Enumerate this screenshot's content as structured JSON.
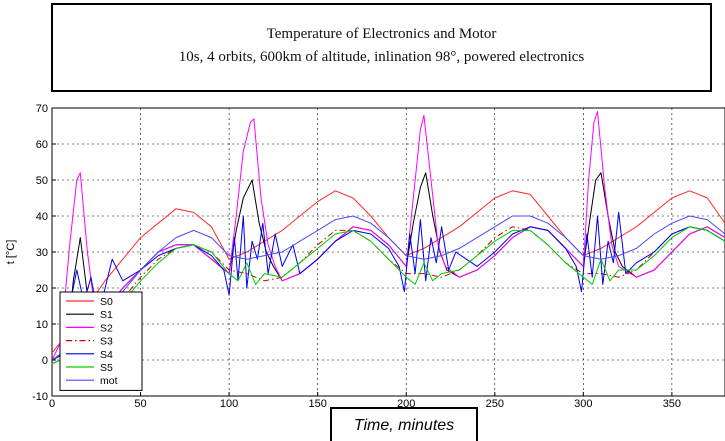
{
  "chart_data": {
    "type": "line",
    "title": "Temperature of Electronics and Motor",
    "subtitle": "10s, 4 orbits, 600km of altitude, inlination 98°, powered electronics",
    "xlabel": "Time, minutes",
    "ylabel": "t [°C]",
    "xlim": [
      0,
      380
    ],
    "ylim": [
      -10,
      70
    ],
    "xticks": [
      0,
      50,
      100,
      150,
      200,
      250,
      300,
      350
    ],
    "yticks": [
      -10,
      0,
      10,
      20,
      30,
      40,
      50,
      60,
      70
    ],
    "grid": true,
    "legend_position": "bottom-left",
    "series": [
      {
        "name": "S0",
        "color": "#ff2a2a",
        "dash": "solid",
        "x": [
          0,
          10,
          20,
          30,
          40,
          50,
          60,
          70,
          80,
          90,
          100,
          110,
          120,
          130,
          140,
          150,
          160,
          170,
          180,
          190,
          200,
          210,
          220,
          230,
          240,
          250,
          260,
          270,
          280,
          290,
          300,
          310,
          320,
          330,
          340,
          350,
          360,
          370,
          380
        ],
        "y": [
          2,
          8,
          15,
          22,
          28,
          34,
          38,
          42,
          41,
          37,
          28,
          30,
          33,
          36,
          40,
          44,
          47,
          45,
          40,
          34,
          29,
          31,
          34,
          37,
          41,
          45,
          47,
          46,
          40,
          34,
          29,
          31,
          34,
          37,
          41,
          45,
          47,
          45,
          38
        ]
      },
      {
        "name": "S1",
        "color": "#000000",
        "dash": "solid",
        "x": [
          0,
          8,
          12,
          16,
          20,
          25,
          30,
          40,
          50,
          60,
          70,
          80,
          90,
          100,
          104,
          108,
          113,
          117,
          121,
          125,
          130,
          140,
          150,
          160,
          170,
          180,
          190,
          200,
          204,
          208,
          211,
          215,
          219,
          223,
          230,
          240,
          250,
          260,
          270,
          280,
          290,
          300,
          304,
          307,
          310,
          314,
          318,
          322,
          330,
          340,
          350,
          360,
          370,
          380
        ],
        "y": [
          0,
          2,
          22,
          34,
          18,
          12,
          14,
          20,
          25,
          30,
          32,
          32,
          28,
          24,
          36,
          45,
          50,
          38,
          30,
          26,
          22,
          24,
          28,
          33,
          37,
          36,
          32,
          26,
          38,
          48,
          52,
          40,
          30,
          25,
          23,
          25,
          29,
          34,
          37,
          36,
          31,
          26,
          40,
          50,
          52,
          40,
          30,
          26,
          23,
          25,
          30,
          35,
          37,
          34
        ]
      },
      {
        "name": "S2",
        "color": "#ff00ff",
        "dash": "solid",
        "x": [
          0,
          5,
          10,
          14,
          16,
          20,
          24,
          30,
          40,
          50,
          60,
          70,
          80,
          90,
          100,
          104,
          108,
          112,
          114,
          118,
          122,
          126,
          130,
          140,
          150,
          160,
          170,
          180,
          190,
          200,
          204,
          208,
          210,
          214,
          218,
          222,
          230,
          240,
          250,
          260,
          270,
          280,
          290,
          300,
          303,
          306,
          308,
          312,
          316,
          320,
          330,
          340,
          350,
          360,
          370,
          380
        ],
        "y": [
          0,
          5,
          32,
          50,
          52,
          30,
          15,
          14,
          20,
          25,
          30,
          32,
          32,
          28,
          24,
          40,
          58,
          66,
          67,
          45,
          32,
          26,
          22,
          24,
          28,
          33,
          37,
          36,
          32,
          26,
          45,
          64,
          68,
          50,
          32,
          26,
          23,
          25,
          29,
          34,
          37,
          36,
          31,
          26,
          50,
          66,
          69,
          48,
          32,
          26,
          23,
          25,
          30,
          35,
          37,
          34
        ]
      },
      {
        "name": "S3",
        "color": "#cc0000",
        "dash": "dashdot",
        "x": [
          0,
          10,
          20,
          30,
          40,
          50,
          60,
          70,
          80,
          90,
          100,
          110,
          120,
          130,
          140,
          150,
          160,
          170,
          180,
          190,
          200,
          210,
          220,
          230,
          240,
          250,
          260,
          270,
          280,
          290,
          300,
          310,
          320,
          330,
          340,
          350,
          360,
          370,
          380
        ],
        "y": [
          -1,
          1,
          5,
          11,
          17,
          23,
          28,
          31,
          32,
          30,
          25,
          24,
          22,
          23,
          27,
          32,
          36,
          36,
          33,
          28,
          24,
          24,
          23,
          25,
          29,
          34,
          37,
          36,
          32,
          27,
          24,
          24,
          23,
          25,
          30,
          35,
          37,
          36,
          33
        ]
      },
      {
        "name": "S4",
        "color": "#0000ee",
        "dash": "solid",
        "x": [
          0,
          6,
          10,
          14,
          18,
          22,
          26,
          30,
          34,
          40,
          50,
          60,
          70,
          80,
          90,
          97,
          100,
          103,
          105,
          108,
          110,
          113,
          116,
          119,
          122,
          126,
          130,
          136,
          140,
          150,
          160,
          170,
          180,
          190,
          196,
          199,
          202,
          205,
          208,
          211,
          214,
          217,
          220,
          224,
          228,
          240,
          250,
          260,
          270,
          280,
          290,
          296,
          299,
          302,
          305,
          308,
          311,
          314,
          317,
          320,
          324,
          330,
          340,
          350,
          360,
          370,
          380
        ],
        "y": [
          0,
          2,
          15,
          25,
          16,
          23,
          12,
          20,
          28,
          22,
          25,
          29,
          31,
          32,
          29,
          25,
          18,
          34,
          22,
          40,
          20,
          33,
          28,
          38,
          24,
          35,
          26,
          32,
          24,
          28,
          33,
          36,
          35,
          31,
          26,
          19,
          35,
          24,
          39,
          22,
          34,
          27,
          37,
          25,
          30,
          26,
          30,
          35,
          37,
          36,
          31,
          26,
          19,
          35,
          23,
          40,
          21,
          33,
          27,
          41,
          24,
          27,
          30,
          35,
          37,
          36,
          33
        ]
      },
      {
        "name": "S5",
        "color": "#00cc00",
        "dash": "solid",
        "x": [
          0,
          10,
          20,
          30,
          40,
          50,
          60,
          70,
          80,
          90,
          100,
          105,
          110,
          115,
          120,
          130,
          140,
          150,
          160,
          170,
          180,
          190,
          200,
          205,
          210,
          215,
          220,
          230,
          240,
          250,
          260,
          270,
          280,
          290,
          300,
          305,
          310,
          315,
          320,
          330,
          340,
          350,
          360,
          370,
          380
        ],
        "y": [
          -1,
          1,
          5,
          10,
          16,
          22,
          27,
          31,
          32,
          30,
          24,
          22,
          27,
          21,
          24,
          23,
          27,
          31,
          35,
          36,
          33,
          28,
          23,
          21,
          27,
          22,
          24,
          25,
          29,
          33,
          36,
          36,
          32,
          27,
          23,
          21,
          28,
          22,
          25,
          25,
          29,
          34,
          37,
          36,
          33
        ]
      },
      {
        "name": "mot",
        "color": "#4a4aff",
        "dash": "solid",
        "x": [
          0,
          10,
          20,
          30,
          40,
          50,
          60,
          70,
          80,
          90,
          100,
          110,
          120,
          130,
          140,
          150,
          160,
          170,
          180,
          190,
          200,
          210,
          220,
          230,
          240,
          250,
          260,
          270,
          280,
          290,
          300,
          310,
          320,
          330,
          340,
          350,
          360,
          370,
          380
        ],
        "y": [
          0,
          3,
          8,
          14,
          19,
          25,
          30,
          34,
          36,
          34,
          29,
          28,
          29,
          30,
          33,
          36,
          39,
          40,
          38,
          34,
          29,
          28,
          29,
          31,
          34,
          37,
          40,
          40,
          38,
          34,
          29,
          28,
          29,
          31,
          35,
          38,
          40,
          39,
          35
        ]
      }
    ]
  }
}
